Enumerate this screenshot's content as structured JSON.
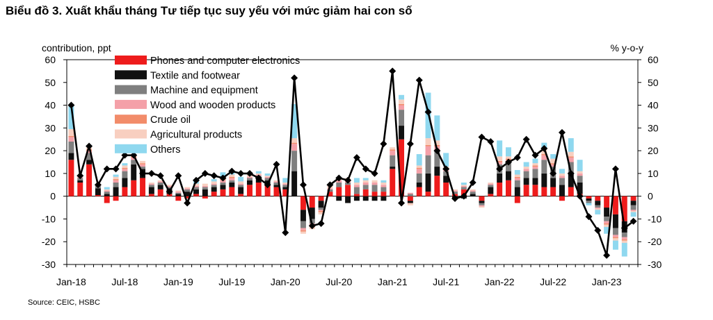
{
  "title": "Biểu đồ 3. Xuất khẩu tháng Tư tiếp tục suy yếu với mức giảm hai con số",
  "source": "Source: CEIC, HSBC",
  "chart_data": {
    "type": "bar",
    "stacked": true,
    "left_axis_label": "contribution, ppt",
    "right_axis_label": "% y-o-y",
    "ylim": [
      -30,
      60
    ],
    "yticks": [
      -30,
      -20,
      -10,
      0,
      10,
      20,
      30,
      40,
      50,
      60
    ],
    "x_tick_labels": [
      "Jan-18",
      "Jul-18",
      "Jan-19",
      "Jul-19",
      "Jan-20",
      "Jul-20",
      "Jan-21",
      "Jul-21",
      "Jan-22",
      "Jul-22",
      "Jan-23"
    ],
    "x_tick_month_index": [
      0,
      6,
      12,
      18,
      24,
      30,
      36,
      42,
      48,
      54,
      60
    ],
    "n_months": 64,
    "legend_position": "top-left",
    "series": [
      {
        "name": "Phones and computer electronics",
        "color": "#ee1c1c",
        "values": [
          16,
          6,
          14,
          0.5,
          -3,
          -2,
          4,
          7,
          8,
          1,
          3,
          1,
          -2,
          -1,
          1,
          -1,
          2,
          3,
          4,
          1,
          5,
          6,
          5,
          4,
          3,
          0,
          -6,
          -5,
          -2,
          2,
          4,
          5,
          1,
          3,
          2,
          2,
          12,
          25,
          -2,
          4,
          2,
          9,
          6,
          1,
          3,
          0,
          -2,
          1,
          6,
          7,
          -3,
          5,
          5,
          4,
          4,
          -2,
          4,
          1,
          -1,
          -2,
          -5,
          -8,
          -11,
          -2
        ]
      },
      {
        "name": "Textile and footwear",
        "color": "#111111",
        "values": [
          3,
          1,
          2,
          3,
          1,
          4,
          4,
          7,
          4,
          3,
          2,
          2,
          1,
          2,
          2,
          3,
          2,
          2,
          2,
          3,
          2,
          2,
          2,
          1,
          1,
          11,
          -5,
          -5,
          -3,
          0,
          -2,
          -3,
          -2,
          -2,
          -2,
          -2,
          1,
          6,
          -1,
          2,
          8,
          4,
          3,
          -1,
          -1,
          1,
          -1,
          3,
          4,
          4,
          4,
          3,
          3,
          6,
          4,
          5,
          6,
          5,
          -1,
          -2,
          -4,
          -6,
          -5,
          -2
        ]
      },
      {
        "name": "Machine and equipment",
        "color": "#7f7f7f",
        "values": [
          5,
          1,
          3,
          1,
          1,
          2,
          3,
          2,
          1,
          1,
          1,
          1,
          0.5,
          1,
          1,
          1,
          1,
          1,
          1,
          1,
          1,
          1,
          1,
          1,
          1,
          9,
          -3,
          -2,
          -1,
          1,
          2,
          1,
          3,
          2,
          3,
          2,
          5,
          7,
          1,
          4,
          8,
          7,
          2,
          1,
          1,
          1,
          -1,
          1,
          4,
          4,
          3,
          3,
          4,
          6,
          5,
          3,
          5,
          3,
          -1,
          -1,
          -2,
          -3,
          -2,
          -2
        ]
      },
      {
        "name": "Wood and wooden products",
        "color": "#f4a0a8",
        "values": [
          2,
          0.5,
          1,
          0.5,
          0.5,
          1,
          1,
          1,
          1,
          0.5,
          0.5,
          0.5,
          0.5,
          0.5,
          0.5,
          0.5,
          0.5,
          1,
          1,
          0.5,
          0.5,
          0.5,
          0.5,
          0.5,
          0.5,
          3,
          -1,
          -1,
          -0.5,
          0.5,
          1,
          1,
          1,
          1,
          1,
          1,
          2,
          2,
          0.5,
          2,
          4,
          2,
          1,
          0.5,
          0.5,
          0.5,
          -0.5,
          0.5,
          1,
          1,
          1,
          1,
          1,
          2,
          1,
          1,
          2,
          1,
          0,
          -0.5,
          -1,
          -1,
          -1,
          -0.5
        ]
      },
      {
        "name": "Crude oil",
        "color": "#f28c6a",
        "values": [
          0.5,
          0,
          0.5,
          0,
          0,
          0.5,
          0.5,
          0.5,
          0.5,
          0,
          0,
          0,
          0,
          0,
          0,
          0,
          0,
          0.5,
          0.5,
          0,
          0,
          0,
          0,
          0,
          0,
          0.5,
          -0.5,
          -0.5,
          -0.5,
          0,
          0,
          0,
          0,
          0,
          0,
          0,
          0.5,
          0.5,
          0,
          0.5,
          0.5,
          0.5,
          0,
          0,
          0,
          0,
          0,
          0,
          0.5,
          0.5,
          0.5,
          0,
          0.5,
          0.5,
          0.5,
          0,
          0.5,
          0,
          0,
          0,
          -0.5,
          -0.5,
          -0.5,
          0
        ]
      },
      {
        "name": "Agricultural products",
        "color": "#f8cfc0",
        "values": [
          3,
          0.5,
          1,
          0.5,
          0.5,
          1,
          1,
          1,
          1,
          0.5,
          0.5,
          0.5,
          0.5,
          0.5,
          1,
          1,
          1,
          1,
          1,
          1,
          1,
          0.5,
          0.5,
          0.5,
          0.5,
          2,
          -1,
          -1,
          -1,
          1,
          1,
          1,
          1,
          1,
          1,
          1,
          1,
          2,
          -1,
          1,
          3,
          2,
          1,
          0.5,
          0.5,
          0.5,
          -0.5,
          0.5,
          2,
          1,
          1,
          1,
          1,
          2,
          2,
          1,
          2,
          1,
          0,
          -0.5,
          -1,
          -1,
          -1,
          -0.5
        ]
      },
      {
        "name": "Others",
        "color": "#8fd8ef",
        "values": [
          10,
          0,
          1,
          0,
          1,
          1,
          1,
          0,
          0,
          0,
          0,
          0,
          0,
          0,
          2,
          0,
          1,
          2,
          1,
          2,
          1,
          1,
          1,
          0,
          2,
          15,
          0,
          0,
          0,
          0,
          0,
          0,
          2,
          1,
          0,
          1,
          0,
          2,
          0,
          5,
          20,
          11,
          6,
          0,
          1,
          0,
          0,
          0,
          7,
          4,
          2,
          2,
          2,
          3,
          2,
          2,
          6,
          5,
          -1,
          -2,
          -3,
          -4,
          -6,
          -2
        ]
      }
    ],
    "total_yoy": {
      "name": "Total exports % y-o-y",
      "color": "#000000",
      "values": [
        40,
        9,
        22,
        5,
        12,
        12,
        18,
        18,
        10,
        10,
        9,
        2,
        9,
        -3,
        7,
        10,
        9,
        8,
        11,
        10,
        10,
        8,
        5,
        14,
        -16,
        52,
        5,
        -13,
        -12,
        5,
        8,
        7,
        17,
        12,
        10,
        23,
        55,
        -3,
        23,
        51,
        37,
        20,
        12,
        -1,
        0,
        6,
        26,
        24,
        12,
        15,
        17,
        25,
        18,
        21,
        10,
        28,
        10,
        0,
        -9,
        -15,
        -26,
        12,
        -14,
        -11
      ]
    }
  }
}
